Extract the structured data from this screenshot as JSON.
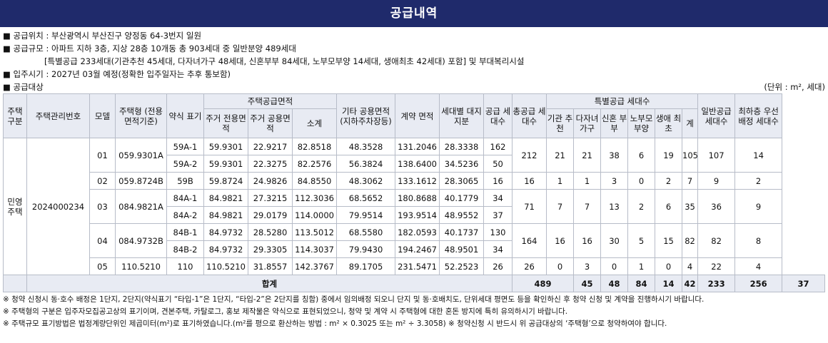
{
  "title": "공급내역",
  "info": {
    "location": "■ 공급위치 : 부산광역시 부산진구 양정동 64-3번지 일원",
    "scale": "■ 공급규모 : 아파트 지하 3층, 지상 28층 10개동 총 903세대 중 일반분양 489세대",
    "scale_detail": "[특별공급 233세대(기관추천 45세대, 다자녀가구 48세대, 신혼부부 84세대, 노부모부양 14세대, 생애최초 42세대) 포함] 및 부대복리시설",
    "move_in": "■ 입주시기 : 2027년 03월 예정(정확한 입주일자는 추후 통보함)",
    "target": "■ 공급대상",
    "unit": "(단위 : m², 세대)"
  },
  "headers": {
    "type": "주택 구분",
    "mgmt_no": "주택관리번호",
    "model": "모델",
    "house_type": "주택형 (전용면적기준)",
    "abbr": "약식 표기",
    "supply_area": "주택공급면적",
    "exclusive": "주거 전용면적",
    "common": "주거 공용면적",
    "subtotal": "소계",
    "other_common": "기타 공용면적 (지하주차장등)",
    "contract_area": "계약 면적",
    "land_share": "세대별 대지지분",
    "supply_units": "공급 세대수",
    "total_units": "총공급 세대수",
    "special": "특별공급 세대수",
    "inst": "기관 추천",
    "multi": "다자녀 가구",
    "newly": "신혼 부부",
    "elderly": "노부모 부양",
    "first": "생애 최초",
    "sum": "계",
    "general": "일반공급 세대수",
    "top_floor": "최하층 우선배정 세대수"
  },
  "rows": {
    "type_label": "민영 주택",
    "mgmt_no": "2024000234",
    "models": [
      {
        "model": "01",
        "house_type": "059.9301A",
        "total": "212",
        "inst": "21",
        "multi": "21",
        "newly": "38",
        "elderly": "6",
        "first": "19",
        "sum": "105",
        "general": "107",
        "top": "14",
        "subs": [
          {
            "abbr": "59A-1",
            "excl": "59.9301",
            "comm": "22.9217",
            "subtotal": "82.8518",
            "other": "48.3528",
            "contract": "131.2046",
            "land": "28.3338",
            "units": "162"
          },
          {
            "abbr": "59A-2",
            "excl": "59.9301",
            "comm": "22.3275",
            "subtotal": "82.2576",
            "other": "56.3824",
            "contract": "138.6400",
            "land": "34.5236",
            "units": "50"
          }
        ]
      },
      {
        "model": "02",
        "house_type": "059.8724B",
        "total": "16",
        "inst": "1",
        "multi": "1",
        "newly": "3",
        "elderly": "0",
        "first": "2",
        "sum": "7",
        "general": "9",
        "top": "2",
        "subs": [
          {
            "abbr": "59B",
            "excl": "59.8724",
            "comm": "24.9826",
            "subtotal": "84.8550",
            "other": "48.3062",
            "contract": "133.1612",
            "land": "28.3065",
            "units": "16"
          }
        ]
      },
      {
        "model": "03",
        "house_type": "084.9821A",
        "total": "71",
        "inst": "7",
        "multi": "7",
        "newly": "13",
        "elderly": "2",
        "first": "6",
        "sum": "35",
        "general": "36",
        "top": "9",
        "subs": [
          {
            "abbr": "84A-1",
            "excl": "84.9821",
            "comm": "27.3215",
            "subtotal": "112.3036",
            "other": "68.5652",
            "contract": "180.8688",
            "land": "40.1779",
            "units": "34"
          },
          {
            "abbr": "84A-2",
            "excl": "84.9821",
            "comm": "29.0179",
            "subtotal": "114.0000",
            "other": "79.9514",
            "contract": "193.9514",
            "land": "48.9552",
            "units": "37"
          }
        ]
      },
      {
        "model": "04",
        "house_type": "084.9732B",
        "total": "164",
        "inst": "16",
        "multi": "16",
        "newly": "30",
        "elderly": "5",
        "first": "15",
        "sum": "82",
        "general": "82",
        "top": "8",
        "subs": [
          {
            "abbr": "84B-1",
            "excl": "84.9732",
            "comm": "28.5280",
            "subtotal": "113.5012",
            "other": "68.5580",
            "contract": "182.0593",
            "land": "40.1737",
            "units": "130"
          },
          {
            "abbr": "84B-2",
            "excl": "84.9732",
            "comm": "29.3305",
            "subtotal": "114.3037",
            "other": "79.9430",
            "contract": "194.2467",
            "land": "48.9501",
            "units": "34"
          }
        ]
      },
      {
        "model": "05",
        "house_type": "110.5210",
        "total": "26",
        "inst": "0",
        "multi": "3",
        "newly": "0",
        "elderly": "1",
        "first": "0",
        "sum": "4",
        "general": "22",
        "top": "4",
        "subs": [
          {
            "abbr": "110",
            "excl": "110.5210",
            "comm": "31.8557",
            "subtotal": "142.3767",
            "other": "89.1705",
            "contract": "231.5471",
            "land": "52.2523",
            "units": "26"
          }
        ]
      }
    ]
  },
  "total": {
    "label": "합계",
    "total_units": "489",
    "inst": "45",
    "multi": "48",
    "newly": "84",
    "elderly": "14",
    "first": "42",
    "sum": "233",
    "general": "256",
    "top": "37"
  },
  "notes": [
    "※ 청약 신청시 동·호수 배정은 1단지, 2단지(약식표기 “타입-1”은 1단지, “타입-2”은 2단지를 칭함) 중에서 임의배정 되오니 단지 및 동·호배치도, 단위세대 평면도 등을 확인하신 후 청약 신청 및 계약을 진행하시기 바랍니다.",
    "※ 주택형의 구분은 입주자모집공고상의 표기이며, 견본주택, 카탈로그, 홍보 제작물은 약식으로 표현되었으니, 청약 및 계약 시 주택형에 대한 혼돈 방지에 특히 유의하시기 바랍니다.",
    "※ 주택규모 표기방법은 법정계량단위인 제곱미터(m²)로 표기하였습니다.(m²를 평으로 환산하는 방법 : m² × 0.3025 또는 m² ÷ 3.3058)  ※ 청약신청 시 반드시 위 공급대상의 ‘주택형’으로 청약하여야 합니다."
  ]
}
